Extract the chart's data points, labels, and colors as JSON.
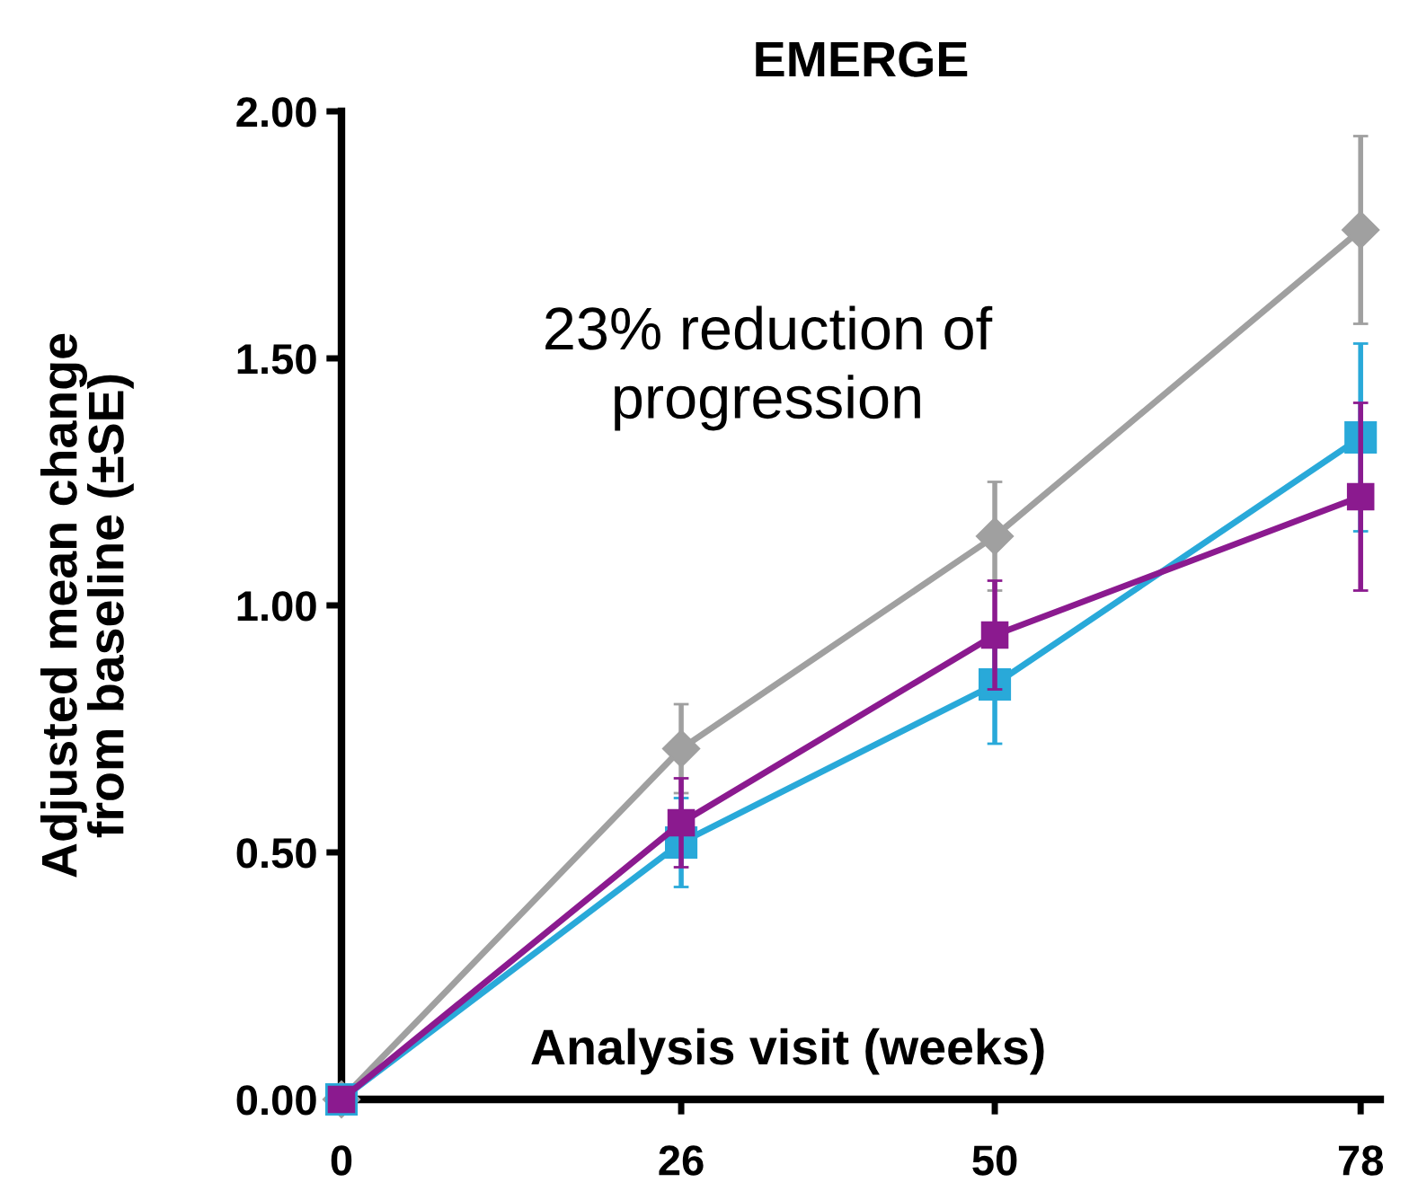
{
  "chart_data": {
    "type": "line",
    "title": "EMERGE",
    "xlabel": "Analysis visit (weeks)",
    "ylabel": "Adjusted mean change\nfrom baseline (±SE)",
    "annotations": [
      "23% reduction of\nprogression"
    ],
    "x": [
      0,
      26,
      50,
      78
    ],
    "xlim": [
      0,
      79.5
    ],
    "xticks": [
      0,
      26,
      50,
      78
    ],
    "ylim": [
      0,
      2.0
    ],
    "yticks": [
      {
        "value": 0,
        "label": "0.00"
      },
      {
        "value": 0.5,
        "label": "0.50"
      },
      {
        "value": 1.0,
        "label": "1.00"
      },
      {
        "value": 1.5,
        "label": "1.50"
      },
      {
        "value": 2.0,
        "label": "2.00"
      }
    ],
    "grid": false,
    "legend": false,
    "line_style": "solid",
    "series": [
      {
        "color": "#a0a0a0",
        "marker": "diamond",
        "values": [
          0,
          0.71,
          1.14,
          1.76
        ],
        "errors": [
          null,
          0.09,
          0.11,
          0.19
        ]
      },
      {
        "color": "#29a9d9",
        "marker": "square",
        "values": [
          0,
          0.52,
          0.84,
          1.34
        ],
        "errors": [
          null,
          0.09,
          0.12,
          0.19
        ]
      },
      {
        "color": "#8b1a8f",
        "marker": "square",
        "values": [
          0,
          0.56,
          0.94,
          1.22
        ],
        "errors": [
          null,
          0.09,
          0.11,
          0.19
        ]
      }
    ]
  }
}
